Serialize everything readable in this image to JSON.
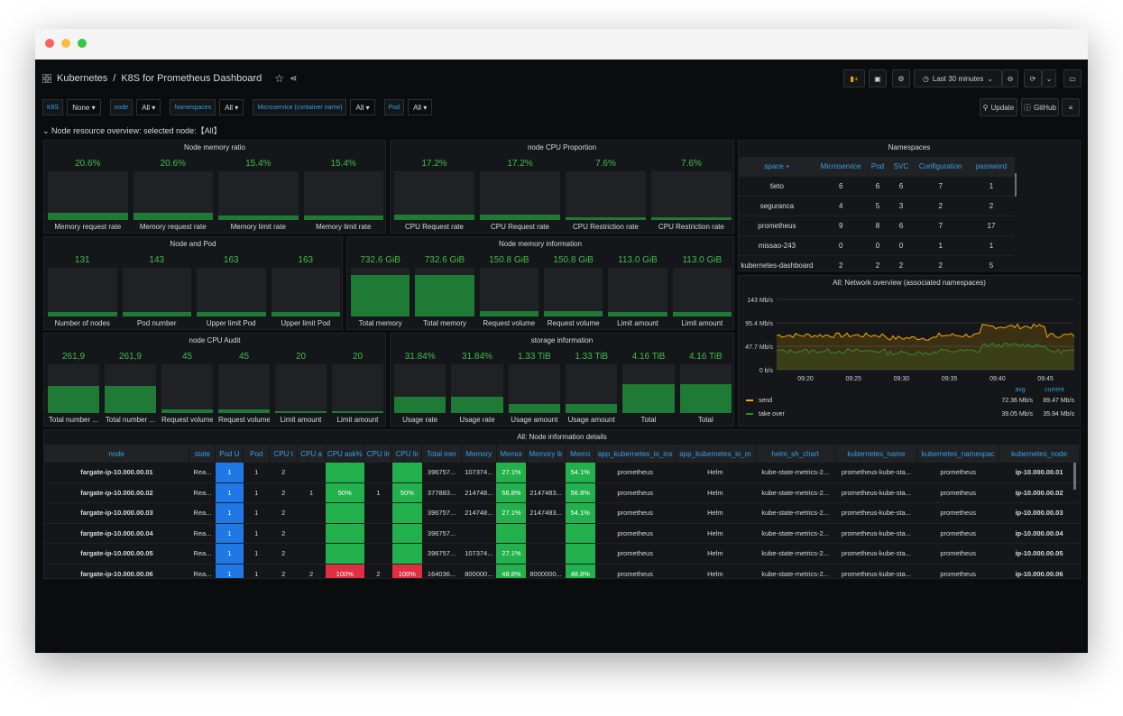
{
  "breadcrumb": {
    "folder": "Kubernetes",
    "separator": "/",
    "title": "K8S for Prometheus Dashboard"
  },
  "toolbar": {
    "time_range": "Last 30 minutes",
    "update": "Update",
    "github": "GitHub"
  },
  "variables": [
    {
      "label": "K8S",
      "value": "None"
    },
    {
      "label": "node",
      "value": "All"
    },
    {
      "label": "Namespaces",
      "value": "All"
    },
    {
      "label": "Microservice (container name)",
      "value": "All"
    },
    {
      "label": "Pod",
      "value": "All"
    }
  ],
  "row_title": "Node resource overview: selected node:【All】",
  "panels": {
    "node_memory_ratio": {
      "title": "Node memory ratio",
      "gauges": [
        {
          "value": "20.6%",
          "label": "Memory request rate",
          "fill": 0.14
        },
        {
          "value": "20.6%",
          "label": "Memory request rate",
          "fill": 0.14
        },
        {
          "value": "15.4%",
          "label": "Memory limit rate",
          "fill": 0.1
        },
        {
          "value": "15.4%",
          "label": "Memory limit rate",
          "fill": 0.1
        }
      ]
    },
    "node_cpu_proportion": {
      "title": "node CPU Proportion",
      "gauges": [
        {
          "value": "17.2%",
          "label": "CPU Request rate",
          "fill": 0.12
        },
        {
          "value": "17.2%",
          "label": "CPU Request rate",
          "fill": 0.12
        },
        {
          "value": "7.6%",
          "label": "CPU Restriction rate",
          "fill": 0.05
        },
        {
          "value": "7.6%",
          "label": "CPU Restriction rate",
          "fill": 0.05
        }
      ]
    },
    "node_and_pod": {
      "title": "Node and Pod",
      "gauges": [
        {
          "value": "131",
          "label": "Number of nodes",
          "fill": 0.1
        },
        {
          "value": "143",
          "label": "Pod number",
          "fill": 0.1
        },
        {
          "value": "163",
          "label": "Upper limit Pod",
          "fill": 0.1
        },
        {
          "value": "163",
          "label": "Upper limit Pod",
          "fill": 0.1
        }
      ]
    },
    "node_memory_info": {
      "title": "Node memory information",
      "gauges": [
        {
          "value": "732.6 GiB",
          "label": "Total memory",
          "fill": 0.85
        },
        {
          "value": "732.6 GiB",
          "label": "Total memory",
          "fill": 0.85
        },
        {
          "value": "150.8 GiB",
          "label": "Request volume",
          "fill": 0.12
        },
        {
          "value": "150.8 GiB",
          "label": "Request volume",
          "fill": 0.12
        },
        {
          "value": "113.0 GiB",
          "label": "Limit amount",
          "fill": 0.09
        },
        {
          "value": "113.0 GiB",
          "label": "Limit amount",
          "fill": 0.09
        }
      ]
    },
    "node_cpu_audit": {
      "title": "node CPU Audit",
      "gauges": [
        {
          "value": "261,9",
          "label": "Total number ...",
          "fill": 0.55
        },
        {
          "value": "261,9",
          "label": "Total number ...",
          "fill": 0.55
        },
        {
          "value": "45",
          "label": "Request volume",
          "fill": 0.07
        },
        {
          "value": "45",
          "label": "Request volume",
          "fill": 0.07
        },
        {
          "value": "20",
          "label": "Limit amount",
          "fill": 0.04
        },
        {
          "value": "20",
          "label": "Limit amount",
          "fill": 0.04
        }
      ]
    },
    "storage_info": {
      "title": "storage information",
      "gauges": [
        {
          "value": "31.84%",
          "label": "Usage rate",
          "fill": 0.33
        },
        {
          "value": "31.84%",
          "label": "Usage rate",
          "fill": 0.33
        },
        {
          "value": "1.33 TiB",
          "label": "Usage amount",
          "fill": 0.18
        },
        {
          "value": "1.33 TiB",
          "label": "Usage amount",
          "fill": 0.18
        },
        {
          "value": "4.16 TiB",
          "label": "Total",
          "fill": 0.6
        },
        {
          "value": "4.16 TiB",
          "label": "Total",
          "fill": 0.6
        }
      ]
    },
    "namespaces": {
      "title": "Namespaces",
      "headers": [
        "space +",
        "Microservice",
        "Pod",
        "SVC",
        "Configuration",
        "password"
      ],
      "rows": [
        [
          "tieto",
          "6",
          "6",
          "6",
          "7",
          "1"
        ],
        [
          "seguranca",
          "4",
          "5",
          "3",
          "2",
          "2"
        ],
        [
          "prometheus",
          "9",
          "8",
          "6",
          "7",
          "17"
        ],
        [
          "missao-243",
          "0",
          "0",
          "0",
          "1",
          "1"
        ],
        [
          "kubernetes-dashboard",
          "2",
          "2",
          "2",
          "2",
          "5"
        ]
      ]
    },
    "network": {
      "title": "All:  Network overview (associated namespaces)",
      "y_ticks": [
        "143 Mb/s",
        "95.4 Mb/s",
        "47.7 Mb/s",
        "0 b/s"
      ],
      "x_ticks": [
        "09:20",
        "09:25",
        "09:30",
        "09:35",
        "09:40",
        "09:45"
      ],
      "legend_headers": [
        "avg",
        "current"
      ],
      "series": [
        {
          "name": "send",
          "color": "#f2a900",
          "avg": "72.36 Mb/s",
          "current": "89.47 Mb/s"
        },
        {
          "name": "take over",
          "color": "#37872d",
          "avg": "39.05 Mb/s",
          "current": "35.94 Mb/s"
        }
      ]
    }
  },
  "details": {
    "title": "All:  Node information details",
    "headers": [
      "node",
      "state",
      "Pod U",
      "Pod",
      "CPU t",
      "CPU a",
      "CPU ask%",
      "CPU lir",
      "CPU lir",
      "Total mer",
      "Memory",
      "Memor",
      "Memory lir",
      "Memo",
      "app_kubernetes_io_ins",
      "app_kubernetes_io_m",
      "helm_sh_chart",
      "kubernetes_name",
      "kubernetes_namespac",
      "kubernetes_node"
    ],
    "rows": [
      [
        "fargate-ip-10.000.00.01",
        "Rea...",
        "1",
        "1",
        "2",
        "",
        "",
        "",
        "",
        "396757...",
        "107374...",
        "27.1%",
        "",
        "54.1%",
        "prometheus",
        "Helm",
        "kube-state-metrics-2...",
        "prometheus-kube-sta...",
        "prometheus",
        "ip-10.000.00.01"
      ],
      [
        "fargate-ip-10.000.00.02",
        "Rea...",
        "1",
        "1",
        "2",
        "1",
        "50%",
        "1",
        "50%",
        "377883...",
        "214748...",
        "56.8%",
        "2147483...",
        "56.8%",
        "prometheus",
        "Helm",
        "kube-state-metrics-2...",
        "prometheus-kube-sta...",
        "prometheus",
        "ip-10.000.00.02"
      ],
      [
        "fargate-ip-10.000.00.03",
        "Rea...",
        "1",
        "1",
        "2",
        "",
        "",
        "",
        "",
        "396757...",
        "214748...",
        "27.1%",
        "2147483...",
        "54.1%",
        "prometheus",
        "Helm",
        "kube-state-metrics-2...",
        "prometheus-kube-sta...",
        "prometheus",
        "ip-10.000.00.03"
      ],
      [
        "fargate-ip-10.000.00.04",
        "Rea...",
        "1",
        "1",
        "2",
        "",
        "",
        "",
        "",
        "396757...",
        "",
        "",
        "",
        "",
        "prometheus",
        "Helm",
        "kube-state-metrics-2...",
        "prometheus-kube-sta...",
        "prometheus",
        "ip-10.000.00.04"
      ],
      [
        "fargate-ip-10.000.00.05",
        "Rea...",
        "1",
        "1",
        "2",
        "",
        "",
        "",
        "",
        "396757...",
        "107374...",
        "27.1%",
        "",
        "",
        "prometheus",
        "Helm",
        "kube-state-metrics-2...",
        "prometheus-kube-sta...",
        "prometheus",
        "ip-10.000.00.05"
      ],
      [
        "fargate-ip-10.000.00.06",
        "Rea...",
        "1",
        "1",
        "2",
        "2",
        "100%",
        "2",
        "100%",
        "164036...",
        "800000...",
        "48.8%",
        "8000000...",
        "48.8%",
        "prometheus",
        "Helm",
        "kube-state-metrics-2...",
        "prometheus-kube-sta...",
        "prometheus",
        "ip-10.000.00.06"
      ]
    ]
  },
  "colors": {
    "cell_blue": "#1f78e6",
    "cell_green": "#22b14c",
    "cell_red": "#e02f44",
    "link_blue": "#33a2e5",
    "stat_green": "#3fbf4a"
  }
}
